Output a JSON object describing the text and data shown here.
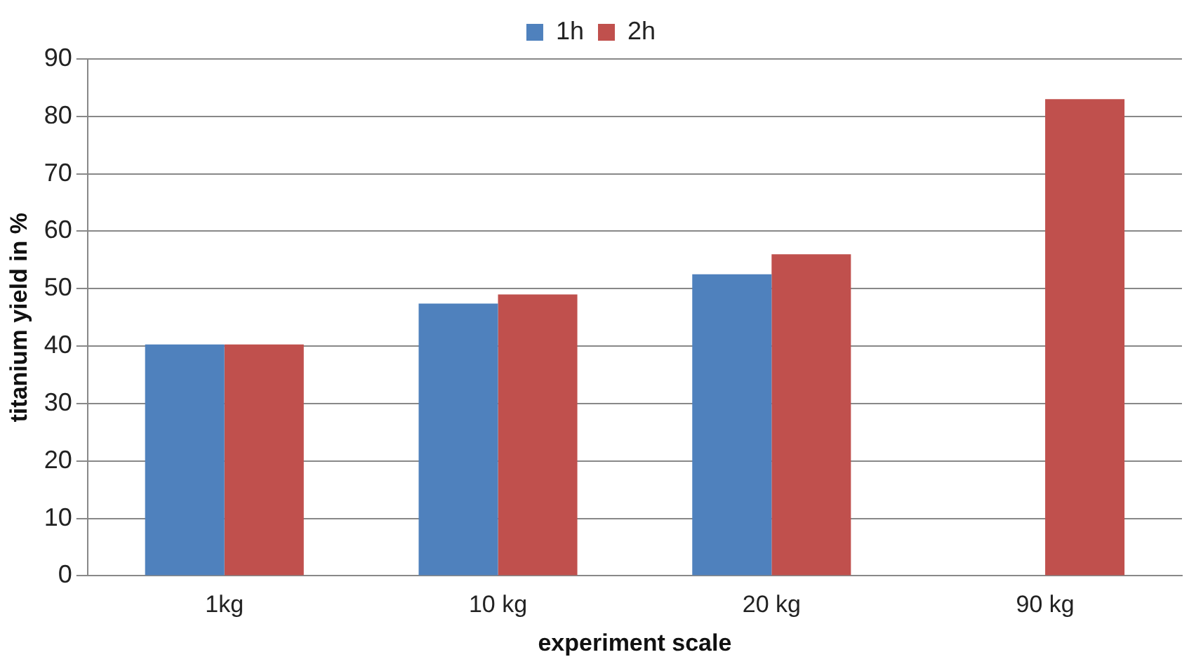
{
  "chart_data": {
    "type": "bar",
    "xlabel": "experiment scale",
    "ylabel": "titanium yield in %",
    "categories": [
      "1kg",
      "10 kg",
      "20 kg",
      "90 kg"
    ],
    "series": [
      {
        "name": "1h",
        "color": "#4f81bd",
        "values": [
          40.3,
          47.4,
          52.5,
          null
        ]
      },
      {
        "name": "2h",
        "color": "#c0504d",
        "values": [
          40.3,
          49,
          56,
          83
        ]
      }
    ],
    "ylim": [
      0,
      90
    ],
    "yticks": [
      0,
      10,
      20,
      30,
      40,
      50,
      60,
      70,
      80,
      90
    ],
    "grid": "y",
    "legend": "top"
  }
}
